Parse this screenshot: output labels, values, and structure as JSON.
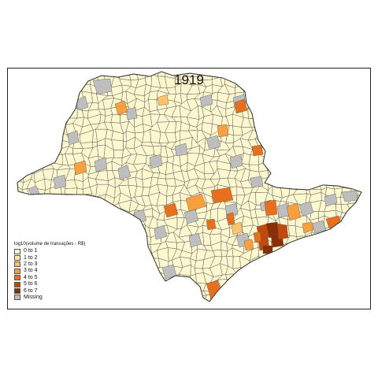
{
  "title": "1919",
  "legend": {
    "title": "log10(volume de transações - R$)",
    "items": [
      {
        "label": "0 to 1",
        "color": "#FFF8CF"
      },
      {
        "label": "1 to 2",
        "color": "#FEE8A8"
      },
      {
        "label": "2 to 3",
        "color": "#FDC46B"
      },
      {
        "label": "3 to 4",
        "color": "#F8A03E"
      },
      {
        "label": "4 to 5",
        "color": "#E8701C"
      },
      {
        "label": "5 to 6",
        "color": "#C04A0C"
      },
      {
        "label": "6 to 7",
        "color": "#8A2E06"
      },
      {
        "label": "Missing",
        "color": "#BEBEBE"
      }
    ]
  },
  "map": {
    "region": "São Paulo state municipalities",
    "base_color": "#FFF8CF",
    "border_color": "#555555"
  }
}
